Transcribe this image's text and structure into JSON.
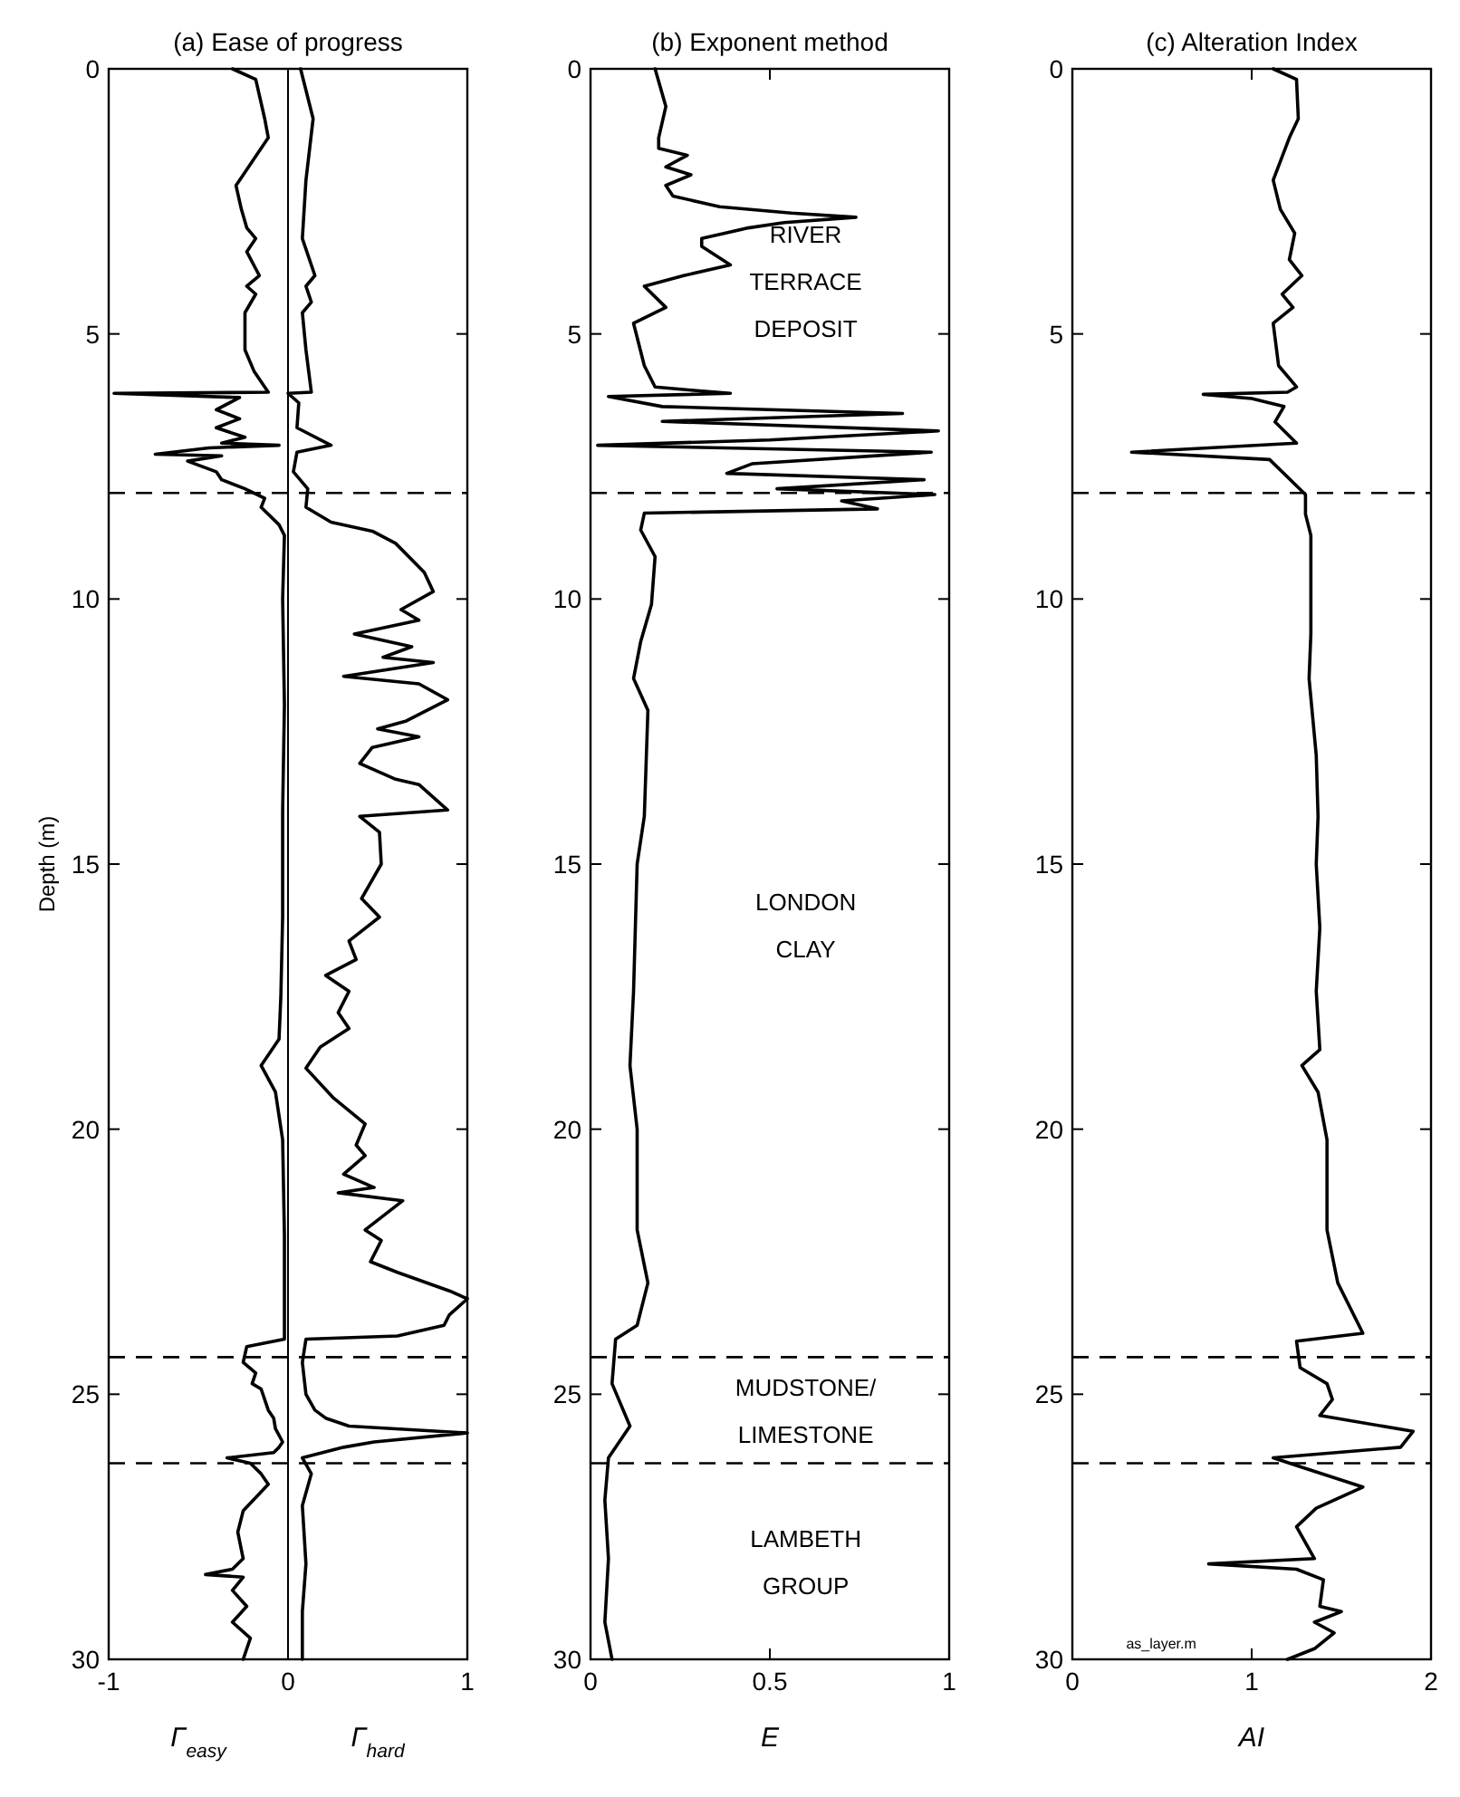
{
  "chart_data": [
    {
      "type": "line",
      "title": "(a) Ease of progress",
      "ylabel": "Depth (m)",
      "orientation": "horizontal",
      "xlim": [
        -1,
        1
      ],
      "xticks": [
        -1,
        0,
        1
      ],
      "ylim": [
        30,
        0
      ],
      "yticks": [
        0,
        5,
        10,
        15,
        20,
        25,
        30
      ],
      "series": [
        {
          "name": "Γ$_{easy}$",
          "color": "#000000",
          "x": [
            0,
            0.2,
            0.94,
            1.3,
            2.1,
            2.2,
            2.65,
            3.0,
            3.2,
            3.45,
            3.9,
            4.1,
            4.25,
            4.6,
            5.3,
            5.7,
            6.0,
            6.1,
            6.12,
            6.2,
            6.43,
            6.6,
            6.77,
            6.95,
            7.06,
            7.1,
            7.15,
            7.27,
            7.3,
            7.4,
            7.6,
            7.75,
            7.92,
            8.1,
            8.27,
            8.6,
            8.8,
            10,
            12,
            14,
            16,
            17.5,
            18.3,
            18.8,
            19.3,
            20.2,
            22,
            23.96,
            24.1,
            24.4,
            24.6,
            24.8,
            24.9,
            25.3,
            25.45,
            25.65,
            25.9,
            26.0,
            26.1,
            26.2,
            26.3,
            26.5,
            26.7,
            27.2,
            27.6,
            28.1,
            28.3,
            28.4,
            28.45,
            28.7,
            29.0,
            29.3,
            29.6,
            30
          ],
          "values": [
            -0.31,
            -0.18,
            -0.13,
            -0.11,
            -0.27,
            -0.29,
            -0.26,
            -0.23,
            -0.18,
            -0.23,
            -0.16,
            -0.23,
            -0.18,
            -0.24,
            -0.24,
            -0.19,
            -0.13,
            -0.11,
            -0.97,
            -0.27,
            -0.4,
            -0.27,
            -0.4,
            -0.24,
            -0.37,
            -0.05,
            -0.44,
            -0.74,
            -0.37,
            -0.56,
            -0.4,
            -0.37,
            -0.24,
            -0.13,
            -0.15,
            -0.05,
            -0.02,
            -0.03,
            -0.02,
            -0.03,
            -0.03,
            -0.04,
            -0.05,
            -0.15,
            -0.07,
            -0.03,
            -0.02,
            -0.02,
            -0.23,
            -0.25,
            -0.18,
            -0.2,
            -0.15,
            -0.11,
            -0.08,
            -0.07,
            -0.03,
            -0.05,
            -0.08,
            -0.34,
            -0.21,
            -0.15,
            -0.11,
            -0.25,
            -0.28,
            -0.25,
            -0.31,
            -0.46,
            -0.25,
            -0.31,
            -0.23,
            -0.31,
            -0.21,
            -0.25
          ]
        },
        {
          "name": "Γ$_{hard}$",
          "color": "#000000",
          "x": [
            0,
            0.94,
            2.1,
            3.2,
            3.9,
            4.1,
            4.4,
            4.6,
            5.3,
            6.1,
            6.12,
            6.3,
            6.77,
            7.1,
            7.23,
            7.6,
            7.92,
            8.27,
            8.55,
            8.72,
            8.95,
            9.5,
            9.86,
            10.2,
            10.4,
            10.66,
            10.9,
            11.1,
            11.2,
            11.46,
            11.6,
            11.9,
            12.3,
            12.45,
            12.6,
            12.8,
            13.1,
            13.4,
            13.5,
            13.98,
            14.1,
            14.4,
            15.0,
            15.65,
            16.0,
            16.45,
            16.8,
            17.1,
            17.4,
            17.8,
            18.1,
            18.45,
            18.85,
            19.4,
            19.9,
            20.3,
            20.5,
            20.85,
            21.1,
            21.2,
            21.35,
            21.9,
            22.1,
            22.5,
            22.7,
            23.05,
            23.2,
            23.5,
            23.7,
            23.9,
            23.96,
            24.4,
            25.0,
            25.3,
            25.45,
            25.6,
            25.73,
            25.9,
            26.0,
            26.2,
            26.5,
            27.1,
            28.2,
            29.1,
            30
          ],
          "values": [
            0.07,
            0.14,
            0.1,
            0.08,
            0.15,
            0.1,
            0.13,
            0.08,
            0.1,
            0.13,
            0.0,
            0.06,
            0.05,
            0.24,
            0.05,
            0.03,
            0.11,
            0.1,
            0.24,
            0.47,
            0.6,
            0.76,
            0.81,
            0.63,
            0.73,
            0.37,
            0.69,
            0.53,
            0.81,
            0.31,
            0.73,
            0.89,
            0.66,
            0.5,
            0.73,
            0.47,
            0.4,
            0.6,
            0.73,
            0.89,
            0.4,
            0.51,
            0.52,
            0.41,
            0.51,
            0.34,
            0.38,
            0.21,
            0.34,
            0.28,
            0.34,
            0.18,
            0.1,
            0.25,
            0.43,
            0.38,
            0.43,
            0.31,
            0.48,
            0.28,
            0.64,
            0.43,
            0.52,
            0.46,
            0.61,
            0.9,
            1.0,
            0.9,
            0.87,
            0.61,
            0.1,
            0.08,
            0.1,
            0.15,
            0.21,
            0.34,
            1.0,
            0.48,
            0.31,
            0.08,
            0.13,
            0.08,
            0.1,
            0.08,
            0.08
          ]
        }
      ],
      "ref_lines": [
        {
          "axis": "x",
          "value": 0,
          "line_style": "solid"
        },
        {
          "axis": "y",
          "value": 8,
          "line_style": "dashed"
        },
        {
          "axis": "y",
          "value": 24.3,
          "line_style": "dashed"
        },
        {
          "axis": "y",
          "value": 26.3,
          "line_style": "dashed"
        }
      ]
    },
    {
      "type": "line",
      "title": "(b) Exponent method",
      "xlabel": "E",
      "orientation": "horizontal",
      "xlim": [
        0,
        1
      ],
      "xticks": [
        0,
        0.5,
        1
      ],
      "ylim": [
        30,
        0
      ],
      "yticks": [
        0,
        5,
        10,
        15,
        20,
        25,
        30
      ],
      "series": [
        {
          "color": "#000000",
          "x": [
            0,
            0.71,
            1.3,
            1.5,
            1.63,
            1.85,
            2.0,
            2.2,
            2.4,
            2.6,
            2.72,
            2.8,
            2.9,
            3.0,
            3.2,
            3.35,
            3.7,
            3.9,
            4.1,
            4.5,
            4.8,
            5.6,
            6.0,
            6.06,
            6.12,
            6.18,
            6.37,
            6.5,
            6.65,
            6.83,
            7.0,
            7.1,
            7.23,
            7.45,
            7.63,
            7.75,
            7.92,
            8.03,
            8.15,
            8.3,
            8.38,
            8.7,
            9.2,
            10.1,
            10.8,
            11.5,
            12.1,
            14.1,
            15,
            17.4,
            18.8,
            20,
            21.9,
            22.9,
            23.7,
            23.96,
            24.8,
            25.6,
            26.2,
            27,
            28.1,
            29.3,
            30
          ],
          "values": [
            0.18,
            0.21,
            0.19,
            0.19,
            0.27,
            0.21,
            0.28,
            0.21,
            0.23,
            0.36,
            0.56,
            0.74,
            0.54,
            0.44,
            0.31,
            0.31,
            0.39,
            0.26,
            0.15,
            0.21,
            0.12,
            0.15,
            0.18,
            0.28,
            0.39,
            0.05,
            0.2,
            0.87,
            0.2,
            0.97,
            0.5,
            0.02,
            0.95,
            0.45,
            0.38,
            0.93,
            0.52,
            0.96,
            0.7,
            0.8,
            0.15,
            0.14,
            0.18,
            0.17,
            0.14,
            0.12,
            0.16,
            0.15,
            0.13,
            0.12,
            0.11,
            0.13,
            0.13,
            0.16,
            0.13,
            0.07,
            0.06,
            0.11,
            0.05,
            0.04,
            0.05,
            0.04,
            0.06
          ]
        }
      ],
      "ref_lines": [
        {
          "axis": "y",
          "value": 8,
          "line_style": "dashed"
        },
        {
          "axis": "y",
          "value": 24.3,
          "line_style": "dashed"
        },
        {
          "axis": "y",
          "value": 26.3,
          "line_style": "dashed"
        }
      ],
      "annotations": [
        "RIVER TERRACE DEPOSIT",
        "LONDON CLAY",
        "MUDSTONE/LIMESTONE",
        "LAMBETH GROUP"
      ]
    },
    {
      "type": "line",
      "title": "(c) Alteration Index",
      "xlabel": "AI",
      "orientation": "horizontal",
      "xlim": [
        0,
        2
      ],
      "xticks": [
        0,
        1,
        2
      ],
      "ylim": [
        30,
        0
      ],
      "yticks": [
        0,
        5,
        10,
        15,
        20,
        25,
        30
      ],
      "series": [
        {
          "color": "#000000",
          "x": [
            0,
            0.2,
            0.94,
            1.3,
            2.1,
            2.65,
            3.1,
            3.6,
            3.9,
            4.25,
            4.5,
            4.8,
            5.6,
            6.0,
            6.1,
            6.14,
            6.22,
            6.37,
            6.66,
            7.06,
            7.23,
            7.37,
            8.03,
            8.4,
            8.8,
            10.66,
            11.5,
            12.95,
            14.1,
            15,
            16.2,
            17.4,
            18.5,
            18.8,
            19.3,
            20.2,
            21.9,
            22.9,
            23.85,
            24.0,
            24.5,
            24.8,
            25.1,
            25.4,
            25.7,
            26.0,
            26.2,
            26.4,
            26.75,
            27.15,
            27.5,
            28.1,
            28.2,
            28.3,
            28.5,
            29.0,
            29.1,
            29.3,
            29.5,
            29.8,
            30
          ],
          "values": [
            1.12,
            1.25,
            1.26,
            1.21,
            1.12,
            1.16,
            1.24,
            1.21,
            1.28,
            1.17,
            1.23,
            1.12,
            1.15,
            1.25,
            1.2,
            0.73,
            1.0,
            1.18,
            1.13,
            1.25,
            0.33,
            1.1,
            1.3,
            1.3,
            1.33,
            1.33,
            1.32,
            1.36,
            1.37,
            1.36,
            1.38,
            1.36,
            1.38,
            1.28,
            1.37,
            1.42,
            1.42,
            1.48,
            1.62,
            1.25,
            1.27,
            1.42,
            1.45,
            1.38,
            1.9,
            1.83,
            1.12,
            1.3,
            1.62,
            1.36,
            1.25,
            1.35,
            0.76,
            1.25,
            1.4,
            1.38,
            1.5,
            1.35,
            1.46,
            1.35,
            1.2
          ]
        }
      ],
      "ref_lines": [
        {
          "axis": "y",
          "value": 8,
          "line_style": "dashed"
        },
        {
          "axis": "y",
          "value": 24.3,
          "line_style": "dashed"
        },
        {
          "axis": "y",
          "value": 26.3,
          "line_style": "dashed"
        }
      ],
      "annotations": [
        "as_layer.m"
      ]
    }
  ]
}
